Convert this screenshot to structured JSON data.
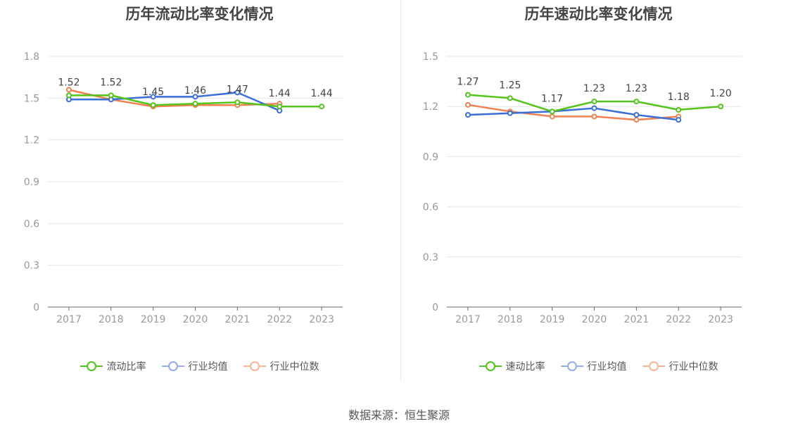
{
  "source_text": "数据来源：恒生聚源",
  "chart_data": [
    {
      "type": "line",
      "title": "历年流动比率变化情况",
      "x": [
        "2017",
        "2018",
        "2019",
        "2020",
        "2021",
        "2022",
        "2023"
      ],
      "ylim": [
        0,
        1.8
      ],
      "yticks": [
        "0",
        "0.3",
        "0.6",
        "0.9",
        "1.2",
        "1.5",
        "1.8"
      ],
      "grid": true,
      "legend_position": "bottom",
      "series": [
        {
          "name": "流动比率",
          "color": "#52c41a",
          "values": [
            1.52,
            1.52,
            1.45,
            1.46,
            1.47,
            1.44,
            1.44
          ],
          "labels": [
            "1.52",
            "1.52",
            "1.45",
            "1.46",
            "1.47",
            "1.44",
            "1.44"
          ]
        },
        {
          "name": "行业均值",
          "color": "#3b6fd8",
          "values": [
            1.49,
            1.49,
            1.51,
            1.51,
            1.54,
            1.41,
            null
          ]
        },
        {
          "name": "行业中位数",
          "color": "#f08050",
          "values": [
            1.56,
            1.49,
            1.44,
            1.45,
            1.45,
            1.46,
            null
          ]
        }
      ]
    },
    {
      "type": "line",
      "title": "历年速动比率变化情况",
      "x": [
        "2017",
        "2018",
        "2019",
        "2020",
        "2021",
        "2022",
        "2023"
      ],
      "ylim": [
        0,
        1.5
      ],
      "yticks": [
        "0",
        "0.3",
        "0.6",
        "0.9",
        "1.2",
        "1.5"
      ],
      "grid": true,
      "legend_position": "bottom",
      "series": [
        {
          "name": "速动比率",
          "color": "#52c41a",
          "values": [
            1.27,
            1.25,
            1.17,
            1.23,
            1.23,
            1.18,
            1.2
          ],
          "labels": [
            "1.27",
            "1.25",
            "1.17",
            "1.23",
            "1.23",
            "1.18",
            "1.20"
          ]
        },
        {
          "name": "行业均值",
          "color": "#3b6fd8",
          "values": [
            1.15,
            1.16,
            1.17,
            1.19,
            1.15,
            1.12,
            null
          ]
        },
        {
          "name": "行业中位数",
          "color": "#f08050",
          "values": [
            1.21,
            1.17,
            1.14,
            1.14,
            1.12,
            1.14,
            null
          ]
        }
      ]
    }
  ]
}
